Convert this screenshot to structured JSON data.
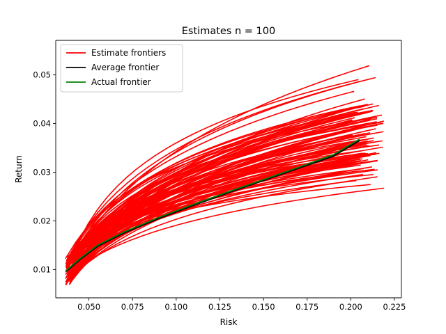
{
  "chart_data": {
    "type": "line",
    "title": "Estimates n = 100",
    "xlabel": "Risk",
    "ylabel": "Return",
    "xlim": [
      0.031,
      0.229
    ],
    "ylim": [
      0.0042,
      0.0571
    ],
    "x_ticks": [
      0.05,
      0.075,
      0.1,
      0.125,
      0.15,
      0.175,
      0.2,
      0.225
    ],
    "x_tick_labels": [
      "0.050",
      "0.075",
      "0.100",
      "0.125",
      "0.150",
      "0.175",
      "0.200",
      "0.225"
    ],
    "y_ticks": [
      0.01,
      0.02,
      0.03,
      0.04,
      0.05
    ],
    "y_tick_labels": [
      "0.01",
      "0.02",
      "0.03",
      "0.04",
      "0.05"
    ],
    "grid": false,
    "legend_position": "top-left",
    "legend": [
      {
        "label": "Estimate frontiers",
        "color": "#ff0000"
      },
      {
        "label": "Average frontier",
        "color": "#000000"
      },
      {
        "label": "Actual frontier",
        "color": "#008000"
      }
    ],
    "estimate_frontiers": {
      "color": "#ff0000",
      "count": 100,
      "start_risk_range": [
        0.0365,
        0.0395
      ],
      "start_return_range": [
        0.0068,
        0.0126
      ],
      "end_risk_range": [
        0.2,
        0.22
      ],
      "end_return_range": [
        0.0212,
        0.0542
      ]
    },
    "series": [
      {
        "name": "Average frontier",
        "color": "#000000",
        "x": [
          0.037,
          0.045,
          0.055,
          0.07,
          0.09,
          0.11,
          0.13,
          0.15,
          0.17,
          0.19,
          0.205
        ],
        "y": [
          0.0096,
          0.0121,
          0.0148,
          0.0175,
          0.0205,
          0.0232,
          0.0258,
          0.0283,
          0.0308,
          0.0333,
          0.0365
        ]
      },
      {
        "name": "Actual frontier",
        "color": "#008000",
        "x": [
          0.037,
          0.045,
          0.055,
          0.07,
          0.09,
          0.11,
          0.13,
          0.15,
          0.17,
          0.19,
          0.205
        ],
        "y": [
          0.0098,
          0.0123,
          0.015,
          0.0177,
          0.0207,
          0.0234,
          0.026,
          0.0285,
          0.031,
          0.0336,
          0.0368
        ]
      }
    ]
  }
}
